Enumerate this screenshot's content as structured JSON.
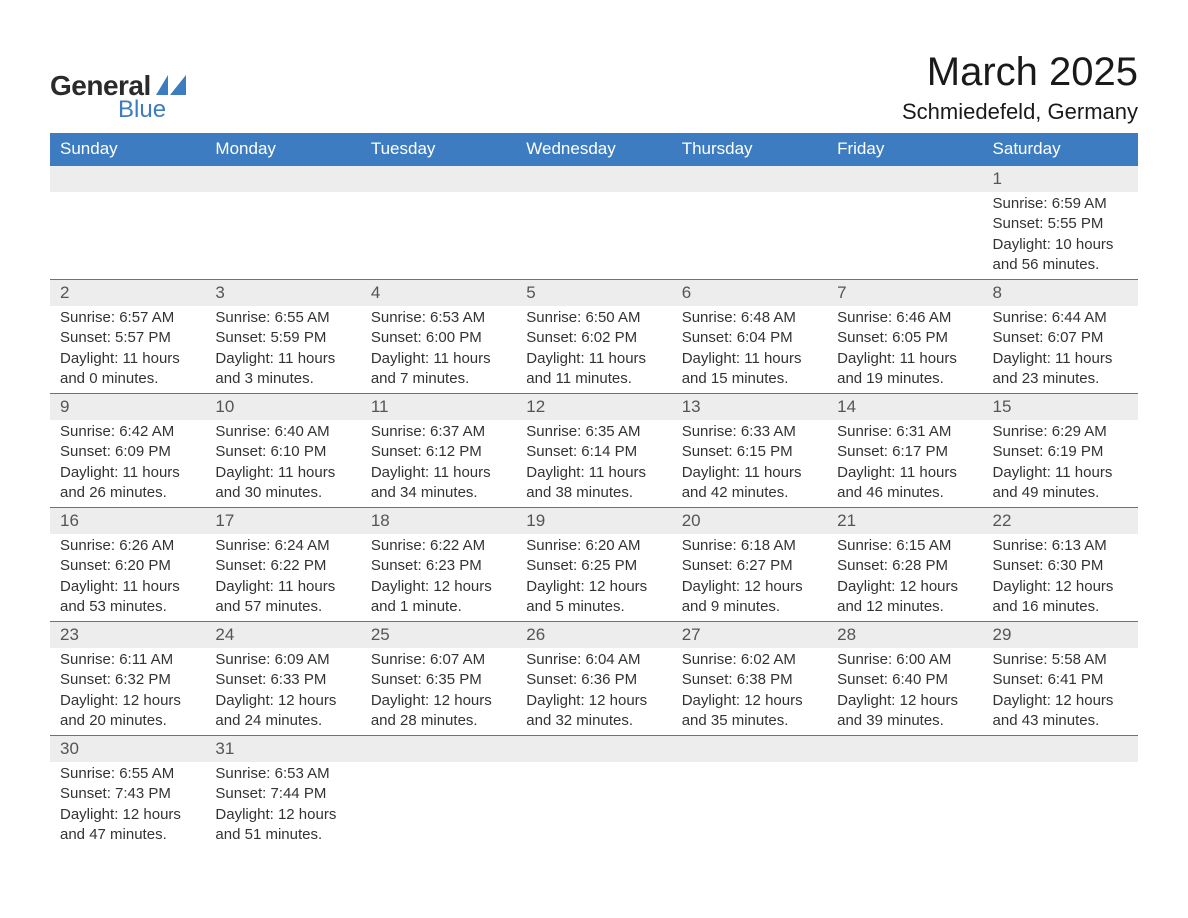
{
  "logo": {
    "word1": "General",
    "word2": "Blue"
  },
  "title": "March 2025",
  "location": "Schmiedefeld, Germany",
  "colors": {
    "header_bg": "#3d7cc0",
    "header_fg": "#ffffff",
    "daynum_bg": "#ededed",
    "daynum_fg": "#555555",
    "detail_fg": "#333333",
    "row_border": "#3d7cc0",
    "page_bg": "#ffffff",
    "logo_shape": "#3d7cc0"
  },
  "typography": {
    "title_fontsize": 40,
    "location_fontsize": 22,
    "dow_fontsize": 17,
    "daynum_fontsize": 17,
    "detail_fontsize": 15
  },
  "structure": {
    "type": "calendar-table",
    "columns": 7,
    "weeks": 6,
    "first_weekday_index": 6
  },
  "days_of_week": [
    "Sunday",
    "Monday",
    "Tuesday",
    "Wednesday",
    "Thursday",
    "Friday",
    "Saturday"
  ],
  "weeks": [
    {
      "daynums": [
        "",
        "",
        "",
        "",
        "",
        "",
        "1"
      ],
      "details": [
        null,
        null,
        null,
        null,
        null,
        null,
        {
          "sunrise": "Sunrise: 6:59 AM",
          "sunset": "Sunset: 5:55 PM",
          "day1": "Daylight: 10 hours",
          "day2": "and 56 minutes."
        }
      ]
    },
    {
      "daynums": [
        "2",
        "3",
        "4",
        "5",
        "6",
        "7",
        "8"
      ],
      "details": [
        {
          "sunrise": "Sunrise: 6:57 AM",
          "sunset": "Sunset: 5:57 PM",
          "day1": "Daylight: 11 hours",
          "day2": "and 0 minutes."
        },
        {
          "sunrise": "Sunrise: 6:55 AM",
          "sunset": "Sunset: 5:59 PM",
          "day1": "Daylight: 11 hours",
          "day2": "and 3 minutes."
        },
        {
          "sunrise": "Sunrise: 6:53 AM",
          "sunset": "Sunset: 6:00 PM",
          "day1": "Daylight: 11 hours",
          "day2": "and 7 minutes."
        },
        {
          "sunrise": "Sunrise: 6:50 AM",
          "sunset": "Sunset: 6:02 PM",
          "day1": "Daylight: 11 hours",
          "day2": "and 11 minutes."
        },
        {
          "sunrise": "Sunrise: 6:48 AM",
          "sunset": "Sunset: 6:04 PM",
          "day1": "Daylight: 11 hours",
          "day2": "and 15 minutes."
        },
        {
          "sunrise": "Sunrise: 6:46 AM",
          "sunset": "Sunset: 6:05 PM",
          "day1": "Daylight: 11 hours",
          "day2": "and 19 minutes."
        },
        {
          "sunrise": "Sunrise: 6:44 AM",
          "sunset": "Sunset: 6:07 PM",
          "day1": "Daylight: 11 hours",
          "day2": "and 23 minutes."
        }
      ]
    },
    {
      "daynums": [
        "9",
        "10",
        "11",
        "12",
        "13",
        "14",
        "15"
      ],
      "details": [
        {
          "sunrise": "Sunrise: 6:42 AM",
          "sunset": "Sunset: 6:09 PM",
          "day1": "Daylight: 11 hours",
          "day2": "and 26 minutes."
        },
        {
          "sunrise": "Sunrise: 6:40 AM",
          "sunset": "Sunset: 6:10 PM",
          "day1": "Daylight: 11 hours",
          "day2": "and 30 minutes."
        },
        {
          "sunrise": "Sunrise: 6:37 AM",
          "sunset": "Sunset: 6:12 PM",
          "day1": "Daylight: 11 hours",
          "day2": "and 34 minutes."
        },
        {
          "sunrise": "Sunrise: 6:35 AM",
          "sunset": "Sunset: 6:14 PM",
          "day1": "Daylight: 11 hours",
          "day2": "and 38 minutes."
        },
        {
          "sunrise": "Sunrise: 6:33 AM",
          "sunset": "Sunset: 6:15 PM",
          "day1": "Daylight: 11 hours",
          "day2": "and 42 minutes."
        },
        {
          "sunrise": "Sunrise: 6:31 AM",
          "sunset": "Sunset: 6:17 PM",
          "day1": "Daylight: 11 hours",
          "day2": "and 46 minutes."
        },
        {
          "sunrise": "Sunrise: 6:29 AM",
          "sunset": "Sunset: 6:19 PM",
          "day1": "Daylight: 11 hours",
          "day2": "and 49 minutes."
        }
      ]
    },
    {
      "daynums": [
        "16",
        "17",
        "18",
        "19",
        "20",
        "21",
        "22"
      ],
      "details": [
        {
          "sunrise": "Sunrise: 6:26 AM",
          "sunset": "Sunset: 6:20 PM",
          "day1": "Daylight: 11 hours",
          "day2": "and 53 minutes."
        },
        {
          "sunrise": "Sunrise: 6:24 AM",
          "sunset": "Sunset: 6:22 PM",
          "day1": "Daylight: 11 hours",
          "day2": "and 57 minutes."
        },
        {
          "sunrise": "Sunrise: 6:22 AM",
          "sunset": "Sunset: 6:23 PM",
          "day1": "Daylight: 12 hours",
          "day2": "and 1 minute."
        },
        {
          "sunrise": "Sunrise: 6:20 AM",
          "sunset": "Sunset: 6:25 PM",
          "day1": "Daylight: 12 hours",
          "day2": "and 5 minutes."
        },
        {
          "sunrise": "Sunrise: 6:18 AM",
          "sunset": "Sunset: 6:27 PM",
          "day1": "Daylight: 12 hours",
          "day2": "and 9 minutes."
        },
        {
          "sunrise": "Sunrise: 6:15 AM",
          "sunset": "Sunset: 6:28 PM",
          "day1": "Daylight: 12 hours",
          "day2": "and 12 minutes."
        },
        {
          "sunrise": "Sunrise: 6:13 AM",
          "sunset": "Sunset: 6:30 PM",
          "day1": "Daylight: 12 hours",
          "day2": "and 16 minutes."
        }
      ]
    },
    {
      "daynums": [
        "23",
        "24",
        "25",
        "26",
        "27",
        "28",
        "29"
      ],
      "details": [
        {
          "sunrise": "Sunrise: 6:11 AM",
          "sunset": "Sunset: 6:32 PM",
          "day1": "Daylight: 12 hours",
          "day2": "and 20 minutes."
        },
        {
          "sunrise": "Sunrise: 6:09 AM",
          "sunset": "Sunset: 6:33 PM",
          "day1": "Daylight: 12 hours",
          "day2": "and 24 minutes."
        },
        {
          "sunrise": "Sunrise: 6:07 AM",
          "sunset": "Sunset: 6:35 PM",
          "day1": "Daylight: 12 hours",
          "day2": "and 28 minutes."
        },
        {
          "sunrise": "Sunrise: 6:04 AM",
          "sunset": "Sunset: 6:36 PM",
          "day1": "Daylight: 12 hours",
          "day2": "and 32 minutes."
        },
        {
          "sunrise": "Sunrise: 6:02 AM",
          "sunset": "Sunset: 6:38 PM",
          "day1": "Daylight: 12 hours",
          "day2": "and 35 minutes."
        },
        {
          "sunrise": "Sunrise: 6:00 AM",
          "sunset": "Sunset: 6:40 PM",
          "day1": "Daylight: 12 hours",
          "day2": "and 39 minutes."
        },
        {
          "sunrise": "Sunrise: 5:58 AM",
          "sunset": "Sunset: 6:41 PM",
          "day1": "Daylight: 12 hours",
          "day2": "and 43 minutes."
        }
      ]
    },
    {
      "daynums": [
        "30",
        "31",
        "",
        "",
        "",
        "",
        ""
      ],
      "details": [
        {
          "sunrise": "Sunrise: 6:55 AM",
          "sunset": "Sunset: 7:43 PM",
          "day1": "Daylight: 12 hours",
          "day2": "and 47 minutes."
        },
        {
          "sunrise": "Sunrise: 6:53 AM",
          "sunset": "Sunset: 7:44 PM",
          "day1": "Daylight: 12 hours",
          "day2": "and 51 minutes."
        },
        null,
        null,
        null,
        null,
        null
      ]
    }
  ]
}
